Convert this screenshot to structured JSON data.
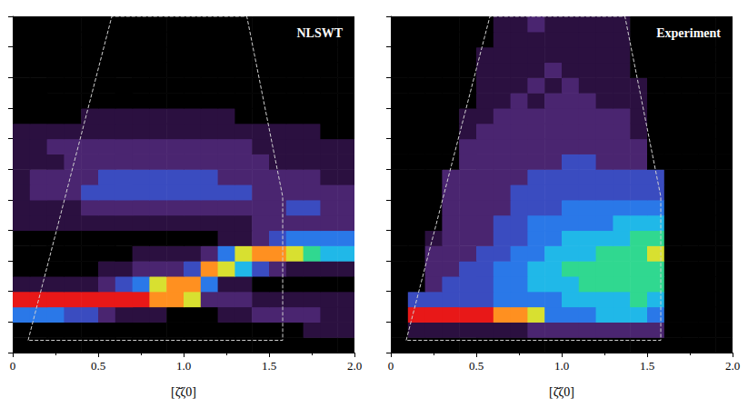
{
  "chart_data": [
    {
      "type": "heatmap",
      "title": "NLSWT",
      "xlabel": "[ζ̄ζ0]",
      "xlim": [
        0,
        2
      ],
      "xticks": [
        0,
        0.5,
        {
          "value": 1,
          "label": "1.0"
        },
        1.5,
        {
          "value": 2,
          "label": "2.0"
        }
      ],
      "ylim": [
        0,
        11
      ],
      "yticks": [
        0,
        1,
        2,
        3,
        4,
        5,
        6,
        7,
        8,
        9,
        10,
        11
      ],
      "tick_labels": "x",
      "grid": false,
      "zlim": [
        0,
        9
      ],
      "x": [
        0.05,
        0.15,
        0.25,
        0.35,
        0.45,
        0.55,
        0.65,
        0.75,
        0.85,
        0.95,
        1.05,
        1.15,
        1.25,
        1.35,
        1.45,
        1.55,
        1.65,
        1.75,
        1.85,
        1.95
      ],
      "y": [
        0.25,
        0.75,
        1.25,
        1.75,
        2.25,
        2.75,
        3.25,
        3.75,
        4.25,
        4.75,
        5.25,
        5.75,
        6.25,
        6.75,
        7.25,
        7.75,
        8.25,
        8.75,
        9.25,
        9.75,
        10.25,
        10.75
      ],
      "z": [
        [
          0,
          0,
          0,
          0,
          0,
          0,
          0,
          0,
          0,
          0,
          0,
          0,
          0,
          0,
          0,
          0,
          0,
          0,
          0,
          0
        ],
        [
          0,
          0,
          0,
          0,
          0,
          0,
          0,
          0,
          0,
          0,
          0,
          0,
          0,
          0,
          0,
          0,
          0,
          1,
          1,
          1
        ],
        [
          4,
          4,
          4,
          3,
          3,
          2,
          1,
          1,
          1,
          0,
          0,
          0,
          1,
          1,
          2,
          2,
          2,
          2,
          1,
          1
        ],
        [
          9,
          9,
          9,
          9,
          9,
          9,
          9,
          9,
          8,
          8,
          7,
          2,
          2,
          2,
          1,
          1,
          1,
          1,
          1,
          1
        ],
        [
          1,
          1,
          1,
          1,
          1,
          2,
          3,
          4,
          7,
          8,
          8,
          4,
          1,
          1,
          0,
          0,
          0,
          0,
          0,
          0
        ],
        [
          0,
          0,
          0,
          0,
          0,
          1,
          1,
          2,
          2,
          2,
          3,
          8,
          7,
          5,
          3,
          2,
          1,
          1,
          1,
          1
        ],
        [
          0,
          0,
          0,
          0,
          0,
          0,
          0,
          1,
          1,
          1,
          1,
          2,
          4,
          7,
          8,
          8,
          7,
          6,
          5,
          5
        ],
        [
          0,
          0,
          0,
          0,
          0,
          0,
          0,
          0,
          0,
          0,
          0,
          0,
          1,
          1,
          2,
          3,
          4,
          4,
          4,
          4
        ],
        [
          1,
          1,
          1,
          1,
          1,
          1,
          1,
          1,
          1,
          1,
          1,
          1,
          1,
          1,
          2,
          2,
          2,
          2,
          2,
          2
        ],
        [
          1,
          1,
          1,
          1,
          2,
          2,
          2,
          2,
          2,
          2,
          2,
          2,
          2,
          2,
          2,
          2,
          3,
          3,
          2,
          2
        ],
        [
          1,
          2,
          2,
          2,
          3,
          3,
          3,
          3,
          3,
          3,
          3,
          3,
          3,
          3,
          2,
          2,
          2,
          2,
          2,
          2
        ],
        [
          1,
          2,
          2,
          2,
          2,
          3,
          3,
          3,
          3,
          3,
          3,
          3,
          2,
          2,
          2,
          2,
          2,
          2,
          1,
          1
        ],
        [
          1,
          1,
          1,
          2,
          2,
          2,
          2,
          2,
          2,
          2,
          2,
          2,
          2,
          2,
          2,
          1,
          1,
          1,
          1,
          1
        ],
        [
          1,
          1,
          2,
          2,
          2,
          2,
          2,
          2,
          2,
          2,
          2,
          2,
          2,
          2,
          1,
          1,
          1,
          1,
          1,
          1
        ],
        [
          1,
          1,
          1,
          1,
          1,
          1,
          1,
          1,
          1,
          1,
          1,
          1,
          1,
          1,
          1,
          1,
          1,
          1,
          0,
          0
        ],
        [
          0,
          0,
          0,
          0,
          1,
          1,
          1,
          1,
          1,
          1,
          1,
          1,
          1,
          0,
          0,
          0,
          0,
          0,
          0,
          0
        ],
        [
          0,
          0,
          0,
          0,
          0,
          0,
          0,
          0,
          0,
          0,
          0,
          0,
          0,
          0,
          0,
          0,
          0,
          0,
          0,
          0
        ],
        [
          0,
          0,
          0,
          0,
          0,
          0,
          0,
          0,
          0,
          0,
          0,
          0,
          0,
          0,
          0,
          0,
          0,
          0,
          0,
          0
        ],
        [
          0,
          0,
          0,
          0,
          0,
          0,
          0,
          0,
          0,
          0,
          0,
          0,
          0,
          0,
          0,
          0,
          0,
          0,
          0,
          0
        ],
        [
          0,
          0,
          0,
          0,
          0,
          0,
          0,
          0,
          0,
          0,
          0,
          0,
          0,
          0,
          0,
          0,
          0,
          0,
          0,
          0
        ],
        [
          0,
          0,
          0,
          0,
          0,
          0,
          0,
          0,
          0,
          0,
          0,
          0,
          0,
          0,
          0,
          0,
          0,
          0,
          0,
          0
        ],
        [
          0,
          0,
          0,
          0,
          0,
          0,
          0,
          0,
          0,
          0,
          0,
          0,
          0,
          0,
          0,
          0,
          0,
          0,
          0,
          0
        ]
      ],
      "region": {
        "x": [
          0.09,
          0.58,
          1.37,
          1.58,
          1.58
        ],
        "y": [
          0.4,
          11,
          11,
          5.1,
          0.4
        ],
        "line_style": "dashed"
      }
    },
    {
      "type": "heatmap",
      "title": "Experiment",
      "xlabel": "[ζ̄ζ0]",
      "xlim": [
        0,
        2
      ],
      "xticks": [
        0,
        0.5,
        {
          "value": 1,
          "label": "1.0"
        },
        1.5,
        {
          "value": 2,
          "label": "2.0"
        }
      ],
      "ylim": [
        0,
        11
      ],
      "yticks": [
        0,
        1,
        2,
        3,
        4,
        5,
        6,
        7,
        8,
        9,
        10,
        11
      ],
      "tick_labels": "x",
      "grid": false,
      "zlim": [
        0,
        9
      ],
      "x": [
        0.05,
        0.15,
        0.25,
        0.35,
        0.45,
        0.55,
        0.65,
        0.75,
        0.85,
        0.95,
        1.05,
        1.15,
        1.25,
        1.35,
        1.45,
        1.55,
        1.65,
        1.75,
        1.85,
        1.95
      ],
      "y": [
        0.25,
        0.75,
        1.25,
        1.75,
        2.25,
        2.75,
        3.25,
        3.75,
        4.25,
        4.75,
        5.25,
        5.75,
        6.25,
        6.75,
        7.25,
        7.75,
        8.25,
        8.75,
        9.25,
        9.75,
        10.25,
        10.75
      ],
      "z": [
        [
          0,
          0,
          0,
          0,
          0,
          0,
          0,
          0,
          0,
          0,
          0,
          0,
          0,
          0,
          0,
          0,
          0,
          0,
          0,
          0
        ],
        [
          0,
          1,
          1,
          1,
          1,
          1,
          1,
          1,
          2,
          2,
          2,
          2,
          2,
          2,
          2,
          2,
          0,
          0,
          0,
          0
        ],
        [
          0,
          9,
          9,
          9,
          9,
          9,
          8,
          8,
          7,
          4,
          4,
          4,
          5,
          5,
          5,
          4,
          0,
          0,
          0,
          0
        ],
        [
          0,
          3,
          3,
          3,
          3,
          3,
          4,
          4,
          4,
          4,
          5,
          5,
          5,
          5,
          6,
          5,
          0,
          0,
          0,
          0
        ],
        [
          0,
          0,
          2,
          3,
          3,
          3,
          4,
          4,
          5,
          5,
          5,
          6,
          6,
          6,
          6,
          6,
          0,
          0,
          0,
          0
        ],
        [
          0,
          0,
          2,
          2,
          3,
          3,
          4,
          4,
          5,
          5,
          6,
          6,
          6,
          6,
          6,
          6,
          0,
          0,
          0,
          0
        ],
        [
          0,
          0,
          2,
          2,
          2,
          3,
          3,
          4,
          4,
          5,
          5,
          5,
          6,
          6,
          6,
          7,
          0,
          0,
          0,
          0
        ],
        [
          0,
          0,
          1,
          2,
          2,
          2,
          3,
          3,
          4,
          4,
          5,
          5,
          5,
          5,
          6,
          6,
          0,
          0,
          0,
          0
        ],
        [
          0,
          0,
          0,
          2,
          2,
          2,
          3,
          3,
          4,
          4,
          4,
          4,
          4,
          5,
          5,
          5,
          0,
          0,
          0,
          0
        ],
        [
          0,
          0,
          0,
          2,
          2,
          2,
          2,
          3,
          3,
          3,
          4,
          4,
          4,
          4,
          4,
          4,
          0,
          0,
          0,
          0
        ],
        [
          0,
          0,
          0,
          2,
          2,
          2,
          2,
          3,
          3,
          3,
          3,
          3,
          3,
          3,
          3,
          3,
          0,
          0,
          0,
          0
        ],
        [
          0,
          0,
          0,
          2,
          2,
          2,
          2,
          2,
          3,
          3,
          3,
          3,
          3,
          3,
          3,
          3,
          0,
          0,
          0,
          0
        ],
        [
          0,
          0,
          0,
          0,
          2,
          2,
          2,
          2,
          2,
          2,
          3,
          3,
          2,
          2,
          2,
          0,
          0,
          0,
          0,
          0
        ],
        [
          0,
          0,
          0,
          0,
          2,
          2,
          2,
          2,
          2,
          2,
          2,
          2,
          2,
          2,
          2,
          0,
          0,
          0,
          0,
          0
        ],
        [
          0,
          0,
          0,
          0,
          1,
          2,
          2,
          2,
          2,
          2,
          2,
          2,
          2,
          2,
          1,
          0,
          0,
          0,
          0,
          0
        ],
        [
          0,
          0,
          0,
          0,
          1,
          1,
          2,
          2,
          2,
          2,
          2,
          2,
          2,
          2,
          1,
          0,
          0,
          0,
          0,
          0
        ],
        [
          0,
          0,
          0,
          0,
          0,
          1,
          1,
          2,
          1,
          2,
          2,
          2,
          1,
          1,
          1,
          0,
          0,
          0,
          0,
          0
        ],
        [
          0,
          0,
          0,
          0,
          0,
          1,
          1,
          1,
          2,
          1,
          2,
          1,
          1,
          1,
          1,
          0,
          0,
          0,
          0,
          0
        ],
        [
          0,
          0,
          0,
          0,
          0,
          1,
          1,
          1,
          1,
          2,
          1,
          1,
          1,
          1,
          0,
          0,
          0,
          0,
          0,
          0
        ],
        [
          0,
          0,
          0,
          0,
          0,
          1,
          1,
          1,
          1,
          1,
          1,
          1,
          1,
          1,
          0,
          0,
          0,
          0,
          0,
          0
        ],
        [
          0,
          0,
          0,
          0,
          0,
          0,
          1,
          1,
          1,
          1,
          1,
          1,
          1,
          1,
          0,
          0,
          0,
          0,
          0,
          0
        ],
        [
          0,
          0,
          0,
          0,
          0,
          0,
          1,
          1,
          2,
          1,
          1,
          1,
          1,
          1,
          0,
          0,
          0,
          0,
          0,
          0
        ]
      ],
      "region": {
        "x": [
          0.09,
          0.58,
          1.37,
          1.58,
          1.58
        ],
        "y": [
          0.4,
          11,
          11,
          5.1,
          0.4
        ],
        "line_style": "dashed"
      }
    }
  ]
}
